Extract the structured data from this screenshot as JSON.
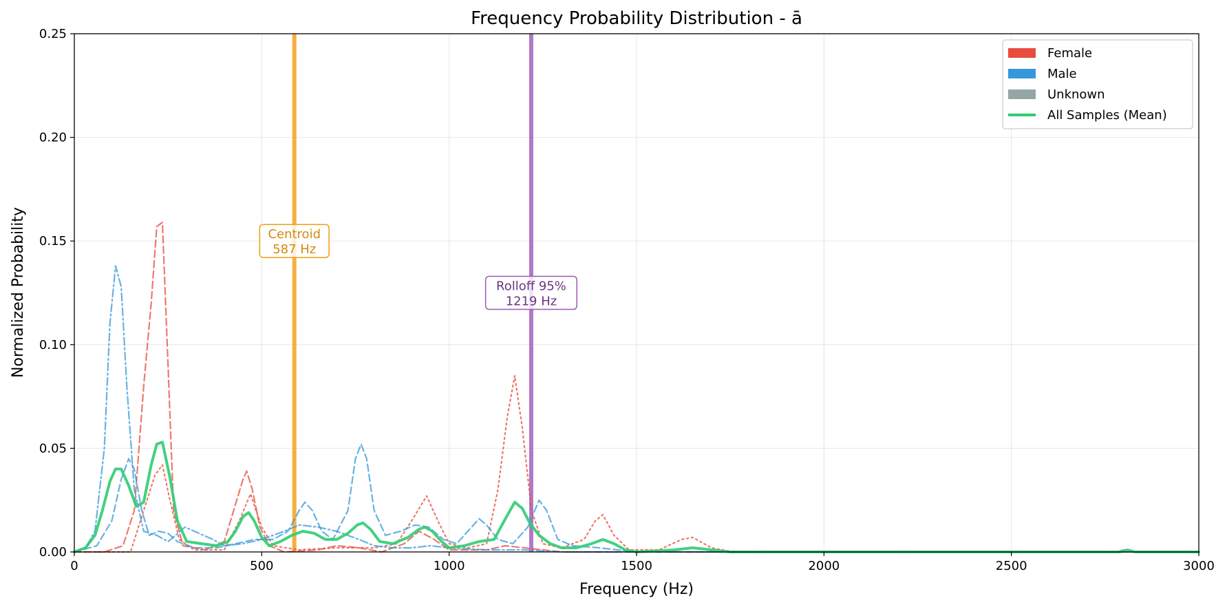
{
  "chart_data": {
    "type": "line",
    "title": "Frequency Probability Distribution - ā",
    "xlabel": "Frequency (Hz)",
    "ylabel": "Normalized Probability",
    "xlim": [
      0,
      3000
    ],
    "ylim": [
      0,
      0.25
    ],
    "x_ticks": [
      0,
      500,
      1000,
      1500,
      2000,
      2500,
      3000
    ],
    "y_ticks": [
      "0.00",
      "0.05",
      "0.10",
      "0.15",
      "0.20",
      "0.25"
    ],
    "grid": true,
    "legend_position": "top-right",
    "legend": [
      {
        "label": "Female",
        "type": "patch",
        "color": "#e74c3c"
      },
      {
        "label": "Male",
        "type": "patch",
        "color": "#3498db"
      },
      {
        "label": "Unknown",
        "type": "patch",
        "color": "#95a5a6"
      },
      {
        "label": "All Samples (Mean)",
        "type": "line",
        "color": "#2ecc71"
      }
    ],
    "series": [
      {
        "color": "#e74c3c",
        "dash": "dashed",
        "width": 2.2,
        "opacity": 0.75,
        "points": [
          [
            0,
            0
          ],
          [
            80,
            0
          ],
          [
            130,
            0.003
          ],
          [
            160,
            0.02
          ],
          [
            185,
            0.08
          ],
          [
            205,
            0.12
          ],
          [
            220,
            0.157
          ],
          [
            235,
            0.159
          ],
          [
            250,
            0.09
          ],
          [
            265,
            0.02
          ],
          [
            290,
            0.003
          ],
          [
            350,
            0.001
          ],
          [
            400,
            0.005
          ],
          [
            425,
            0.02
          ],
          [
            450,
            0.035
          ],
          [
            460,
            0.039
          ],
          [
            475,
            0.03
          ],
          [
            495,
            0.012
          ],
          [
            520,
            0.003
          ],
          [
            560,
            0
          ],
          [
            650,
            0.001
          ],
          [
            700,
            0.003
          ],
          [
            760,
            0.002
          ],
          [
            820,
            0
          ],
          [
            880,
            0.004
          ],
          [
            920,
            0.01
          ],
          [
            960,
            0.006
          ],
          [
            1000,
            0.001
          ],
          [
            1100,
            0.001
          ],
          [
            1150,
            0.003
          ],
          [
            1200,
            0.002
          ],
          [
            1300,
            0
          ],
          [
            3000,
            0
          ]
        ]
      },
      {
        "color": "#e74c3c",
        "dash": "dotted",
        "width": 2.2,
        "opacity": 0.75,
        "points": [
          [
            0,
            0
          ],
          [
            150,
            0
          ],
          [
            185,
            0.02
          ],
          [
            215,
            0.037
          ],
          [
            235,
            0.042
          ],
          [
            255,
            0.025
          ],
          [
            280,
            0.006
          ],
          [
            320,
            0.001
          ],
          [
            400,
            0.001
          ],
          [
            440,
            0.015
          ],
          [
            470,
            0.028
          ],
          [
            500,
            0.012
          ],
          [
            530,
            0.003
          ],
          [
            600,
            0.001
          ],
          [
            700,
            0.002
          ],
          [
            800,
            0.002
          ],
          [
            860,
            0.004
          ],
          [
            900,
            0.015
          ],
          [
            940,
            0.027
          ],
          [
            970,
            0.015
          ],
          [
            1000,
            0.004
          ],
          [
            1050,
            0.002
          ],
          [
            1100,
            0.004
          ],
          [
            1130,
            0.03
          ],
          [
            1155,
            0.065
          ],
          [
            1175,
            0.085
          ],
          [
            1195,
            0.06
          ],
          [
            1220,
            0.02
          ],
          [
            1250,
            0.004
          ],
          [
            1300,
            0.002
          ],
          [
            1360,
            0.006
          ],
          [
            1390,
            0.015
          ],
          [
            1410,
            0.018
          ],
          [
            1440,
            0.008
          ],
          [
            1480,
            0.001
          ],
          [
            1560,
            0.001
          ],
          [
            1620,
            0.006
          ],
          [
            1650,
            0.007
          ],
          [
            1700,
            0.002
          ],
          [
            1760,
            0
          ],
          [
            3000,
            0
          ]
        ]
      },
      {
        "color": "#3498db",
        "dash": "dashdot",
        "width": 2.2,
        "opacity": 0.75,
        "points": [
          [
            0,
            0
          ],
          [
            30,
            0.002
          ],
          [
            55,
            0.01
          ],
          [
            80,
            0.05
          ],
          [
            95,
            0.11
          ],
          [
            110,
            0.138
          ],
          [
            125,
            0.128
          ],
          [
            140,
            0.08
          ],
          [
            160,
            0.03
          ],
          [
            185,
            0.01
          ],
          [
            220,
            0.008
          ],
          [
            250,
            0.005
          ],
          [
            270,
            0.008
          ],
          [
            295,
            0.012
          ],
          [
            320,
            0.01
          ],
          [
            345,
            0.008
          ],
          [
            370,
            0.006
          ],
          [
            400,
            0.003
          ],
          [
            450,
            0.004
          ],
          [
            500,
            0.006
          ],
          [
            560,
            0.01
          ],
          [
            600,
            0.013
          ],
          [
            650,
            0.012
          ],
          [
            700,
            0.01
          ],
          [
            760,
            0.006
          ],
          [
            800,
            0.003
          ],
          [
            850,
            0.002
          ],
          [
            900,
            0.002
          ],
          [
            950,
            0.003
          ],
          [
            1000,
            0.002
          ],
          [
            1100,
            0.001
          ],
          [
            1200,
            0.001
          ],
          [
            1300,
            0
          ],
          [
            3000,
            0
          ]
        ]
      },
      {
        "color": "#3498db",
        "dash": "dashed",
        "width": 2.2,
        "opacity": 0.75,
        "points": [
          [
            0,
            0
          ],
          [
            60,
            0.003
          ],
          [
            100,
            0.015
          ],
          [
            125,
            0.035
          ],
          [
            145,
            0.045
          ],
          [
            160,
            0.04
          ],
          [
            180,
            0.02
          ],
          [
            200,
            0.008
          ],
          [
            225,
            0.01
          ],
          [
            250,
            0.009
          ],
          [
            275,
            0.005
          ],
          [
            320,
            0.002
          ],
          [
            380,
            0.002
          ],
          [
            430,
            0.004
          ],
          [
            480,
            0.006
          ],
          [
            530,
            0.006
          ],
          [
            570,
            0.01
          ],
          [
            600,
            0.02
          ],
          [
            615,
            0.024
          ],
          [
            635,
            0.02
          ],
          [
            660,
            0.01
          ],
          [
            690,
            0.006
          ],
          [
            730,
            0.02
          ],
          [
            750,
            0.045
          ],
          [
            765,
            0.052
          ],
          [
            780,
            0.045
          ],
          [
            800,
            0.02
          ],
          [
            830,
            0.008
          ],
          [
            870,
            0.01
          ],
          [
            910,
            0.013
          ],
          [
            945,
            0.012
          ],
          [
            985,
            0.006
          ],
          [
            1020,
            0.004
          ],
          [
            1060,
            0.012
          ],
          [
            1080,
            0.016
          ],
          [
            1100,
            0.013
          ],
          [
            1130,
            0.006
          ],
          [
            1170,
            0.004
          ],
          [
            1210,
            0.012
          ],
          [
            1240,
            0.025
          ],
          [
            1260,
            0.02
          ],
          [
            1290,
            0.006
          ],
          [
            1330,
            0.003
          ],
          [
            1400,
            0.002
          ],
          [
            1450,
            0.001
          ],
          [
            1500,
            0
          ],
          [
            2780,
            0
          ],
          [
            2800,
            0.001
          ],
          [
            2820,
            0
          ],
          [
            3000,
            0
          ]
        ]
      },
      {
        "color": "#2ecc71",
        "dash": "solid",
        "width": 4,
        "opacity": 0.9,
        "points": [
          [
            0,
            0
          ],
          [
            30,
            0.002
          ],
          [
            55,
            0.008
          ],
          [
            75,
            0.02
          ],
          [
            95,
            0.034
          ],
          [
            110,
            0.04
          ],
          [
            125,
            0.04
          ],
          [
            145,
            0.032
          ],
          [
            165,
            0.022
          ],
          [
            185,
            0.024
          ],
          [
            205,
            0.042
          ],
          [
            220,
            0.052
          ],
          [
            235,
            0.053
          ],
          [
            255,
            0.036
          ],
          [
            275,
            0.015
          ],
          [
            300,
            0.005
          ],
          [
            340,
            0.004
          ],
          [
            380,
            0.003
          ],
          [
            410,
            0.005
          ],
          [
            430,
            0.01
          ],
          [
            450,
            0.017
          ],
          [
            465,
            0.019
          ],
          [
            480,
            0.015
          ],
          [
            500,
            0.007
          ],
          [
            520,
            0.003
          ],
          [
            550,
            0.005
          ],
          [
            580,
            0.008
          ],
          [
            610,
            0.01
          ],
          [
            640,
            0.009
          ],
          [
            670,
            0.006
          ],
          [
            700,
            0.006
          ],
          [
            730,
            0.009
          ],
          [
            755,
            0.013
          ],
          [
            770,
            0.014
          ],
          [
            790,
            0.011
          ],
          [
            815,
            0.005
          ],
          [
            850,
            0.004
          ],
          [
            890,
            0.007
          ],
          [
            920,
            0.011
          ],
          [
            935,
            0.012
          ],
          [
            955,
            0.01
          ],
          [
            980,
            0.005
          ],
          [
            1000,
            0.002
          ],
          [
            1040,
            0.003
          ],
          [
            1080,
            0.005
          ],
          [
            1120,
            0.006
          ],
          [
            1150,
            0.016
          ],
          [
            1175,
            0.024
          ],
          [
            1195,
            0.021
          ],
          [
            1215,
            0.014
          ],
          [
            1240,
            0.008
          ],
          [
            1270,
            0.004
          ],
          [
            1300,
            0.002
          ],
          [
            1340,
            0.002
          ],
          [
            1380,
            0.004
          ],
          [
            1410,
            0.006
          ],
          [
            1440,
            0.004
          ],
          [
            1470,
            0.001
          ],
          [
            1500,
            0
          ],
          [
            1600,
            0.001
          ],
          [
            1650,
            0.002
          ],
          [
            1700,
            0.001
          ],
          [
            1750,
            0
          ],
          [
            2790,
            0
          ],
          [
            2810,
            0.001
          ],
          [
            2830,
            0
          ],
          [
            3000,
            0
          ]
        ]
      }
    ],
    "vlines": [
      {
        "x": 587,
        "color": "#f39c12",
        "label": "Centroid",
        "value": "587 Hz",
        "text_color": "#d68910",
        "label_y": 0.15
      },
      {
        "x": 1219,
        "color": "#9b59b6",
        "label": "Rolloff 95%",
        "value": "1219 Hz",
        "text_color": "#6c3483",
        "label_y": 0.125
      }
    ]
  }
}
